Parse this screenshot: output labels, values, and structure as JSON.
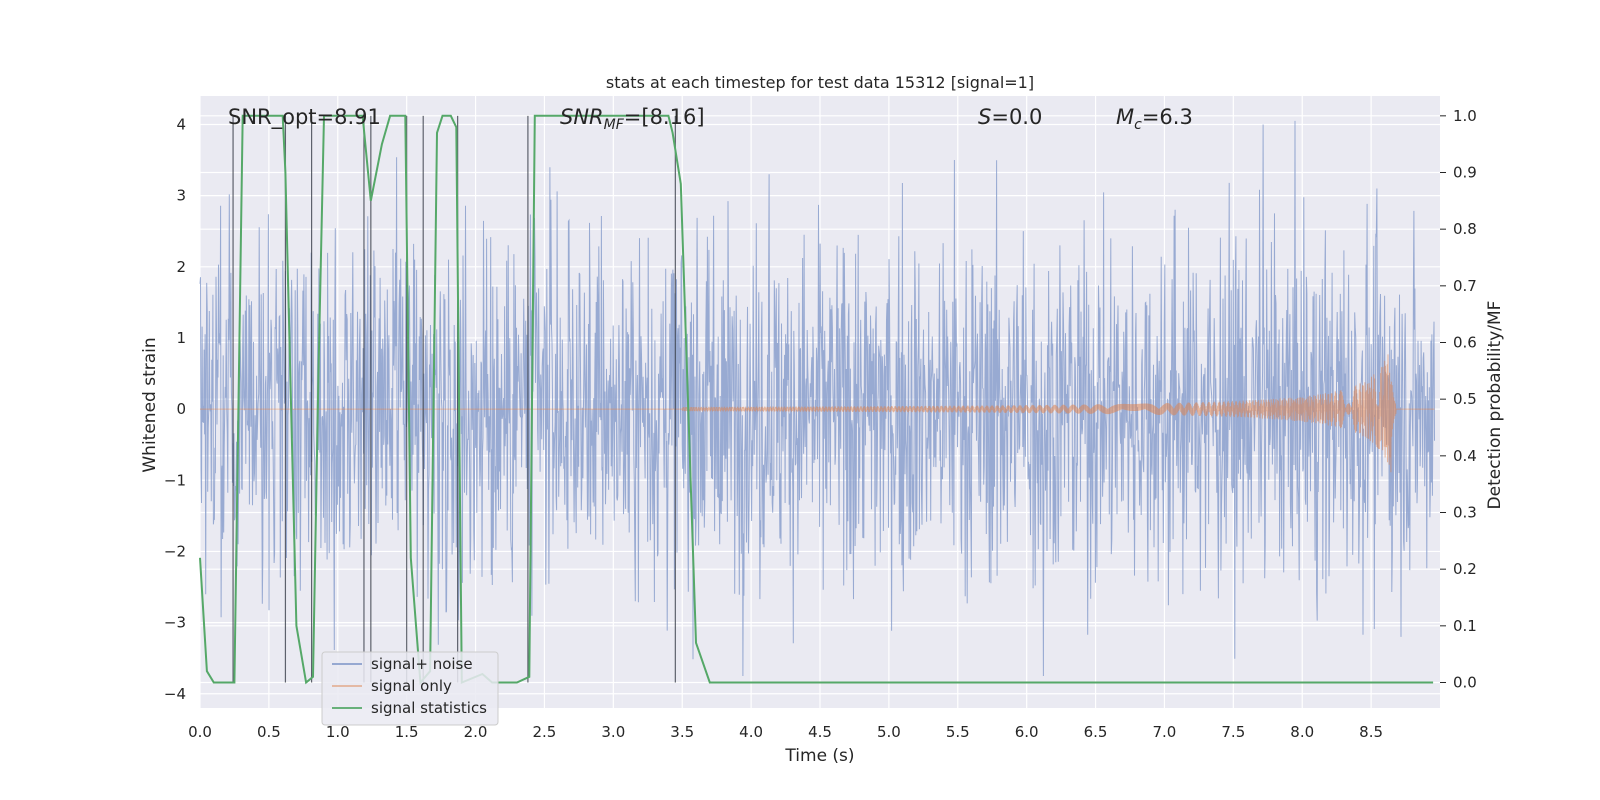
{
  "chart_data": {
    "type": "line",
    "title": "stats at each timestep for test data 15312 [signal=1]",
    "xlabel": "Time (s)",
    "ylabel": "Whitened strain",
    "y2label": "Detection probability/MF",
    "xlim": [
      0.0,
      9.0
    ],
    "ylim": [
      -4.2,
      4.4
    ],
    "y2lim": [
      -0.045,
      1.035
    ],
    "xticks": [
      "0.0",
      "0.5",
      "1.0",
      "1.5",
      "2.0",
      "2.5",
      "3.0",
      "3.5",
      "4.0",
      "4.5",
      "5.0",
      "5.5",
      "6.0",
      "6.5",
      "7.0",
      "7.5",
      "8.0",
      "8.5"
    ],
    "yticks": [
      "4",
      "3",
      "2",
      "1",
      "0",
      "−1",
      "−2",
      "−3",
      "−4"
    ],
    "y2ticks": [
      "1.0",
      "0.9",
      "0.8",
      "0.7",
      "0.6",
      "0.5",
      "0.4",
      "0.3",
      "0.2",
      "0.1",
      "0.0"
    ],
    "annotations": {
      "snr_opt": "SNR_opt=8.91",
      "snr_mf_name": "SNR",
      "snr_mf_sub": "MF",
      "snr_mf_value": "=[8.16]",
      "s_name": "S",
      "s_value": "=0.0",
      "mc_name": "M",
      "mc_sub": "c",
      "mc_value": "=6.3"
    },
    "series": [
      {
        "name": "signal+ noise",
        "color": "#8a9fcc",
        "kind": "noise",
        "amplitude": 2.2,
        "extremes": [
          [
            6.15,
            -3.75
          ],
          [
            7.75,
            4.0
          ],
          [
            2.55,
            3.4
          ],
          [
            4.15,
            3.3
          ],
          [
            5.5,
            3.5
          ]
        ]
      },
      {
        "name": "signal only",
        "color": "#dd8452",
        "kind": "chirp",
        "start": 3.5,
        "merger": 8.65,
        "peak": 1.0
      },
      {
        "name": "signal statistics",
        "color": "#55a868",
        "axis": "right",
        "x": [
          0.0,
          0.05,
          0.1,
          0.25,
          0.31,
          0.6,
          0.62,
          0.7,
          0.77,
          0.82,
          0.86,
          0.9,
          1.18,
          1.24,
          1.32,
          1.38,
          1.49,
          1.53,
          1.6,
          1.67,
          1.72,
          1.76,
          1.82,
          1.86,
          1.9,
          2.05,
          2.12,
          2.3,
          2.39,
          2.43,
          3.4,
          3.43,
          3.49,
          3.6,
          3.7,
          8.8,
          8.95
        ],
        "y": [
          0.22,
          0.02,
          0.0,
          0.0,
          1.0,
          1.0,
          0.9,
          0.1,
          0.0,
          0.01,
          0.55,
          1.0,
          1.0,
          0.85,
          0.95,
          1.0,
          1.0,
          0.22,
          0.0,
          0.02,
          0.97,
          1.0,
          1.0,
          0.98,
          0.0,
          0.015,
          0.0,
          0.0,
          0.01,
          1.0,
          1.0,
          0.97,
          0.88,
          0.07,
          0.0,
          0.0,
          0.0
        ]
      }
    ],
    "vlines": [
      0.24,
      0.62,
      0.81,
      1.19,
      1.24,
      1.5,
      1.62,
      1.87,
      2.38,
      3.45
    ],
    "legend": {
      "location": "lower-left",
      "entries": [
        "signal+ noise",
        "signal only",
        "signal statistics"
      ]
    }
  }
}
